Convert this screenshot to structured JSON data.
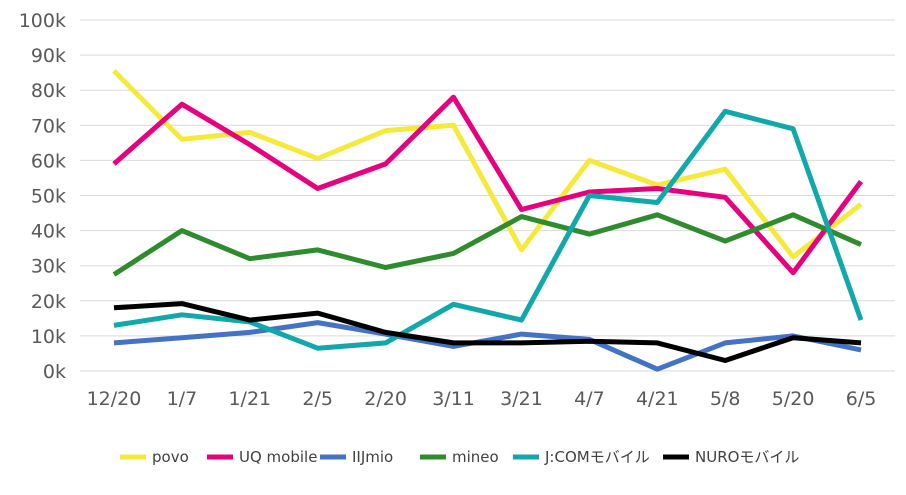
{
  "chart_data": {
    "type": "line",
    "title": "",
    "xlabel": "",
    "ylabel": "",
    "categories": [
      "12/20",
      "1/7",
      "1/21",
      "2/5",
      "2/20",
      "3/11",
      "3/21",
      "4/7",
      "4/21",
      "5/8",
      "5/20",
      "6/5"
    ],
    "y_ticks": [
      "0k",
      "10k",
      "20k",
      "30k",
      "40k",
      "50k",
      "60k",
      "70k",
      "80k",
      "90k",
      "100k"
    ],
    "ylim": [
      0,
      100000
    ],
    "grid": true,
    "legend_position": "bottom",
    "series": [
      {
        "name": "povo",
        "color": "#f5e93b",
        "values": [
          85500,
          66000,
          68000,
          60500,
          68500,
          70000,
          34500,
          60000,
          53000,
          57500,
          32500,
          47500
        ]
      },
      {
        "name": "UQ mobile",
        "color": "#e6007e",
        "values": [
          59000,
          76000,
          64500,
          52000,
          59000,
          78000,
          46000,
          51000,
          52000,
          49500,
          28000,
          54000
        ]
      },
      {
        "name": "IIJmio",
        "color": "#4472c4",
        "values": [
          8000,
          9500,
          11000,
          13800,
          10500,
          7000,
          10500,
          9000,
          500,
          8000,
          10000,
          6000
        ]
      },
      {
        "name": "mineo",
        "color": "#2e8b2e",
        "values": [
          27500,
          40000,
          32000,
          34500,
          29500,
          33500,
          44000,
          39000,
          44500,
          37000,
          44500,
          36000
        ]
      },
      {
        "name": "J:COMモバイル",
        "color": "#10a8ab",
        "values": [
          13000,
          16000,
          14000,
          6500,
          8000,
          19000,
          14500,
          50000,
          48000,
          74000,
          69000,
          14500
        ]
      },
      {
        "name": "NUROモバイル",
        "color": "#000000",
        "values": [
          18000,
          19200,
          14500,
          16500,
          11000,
          8000,
          8000,
          8500,
          8000,
          3000,
          9500,
          8000
        ]
      }
    ]
  }
}
